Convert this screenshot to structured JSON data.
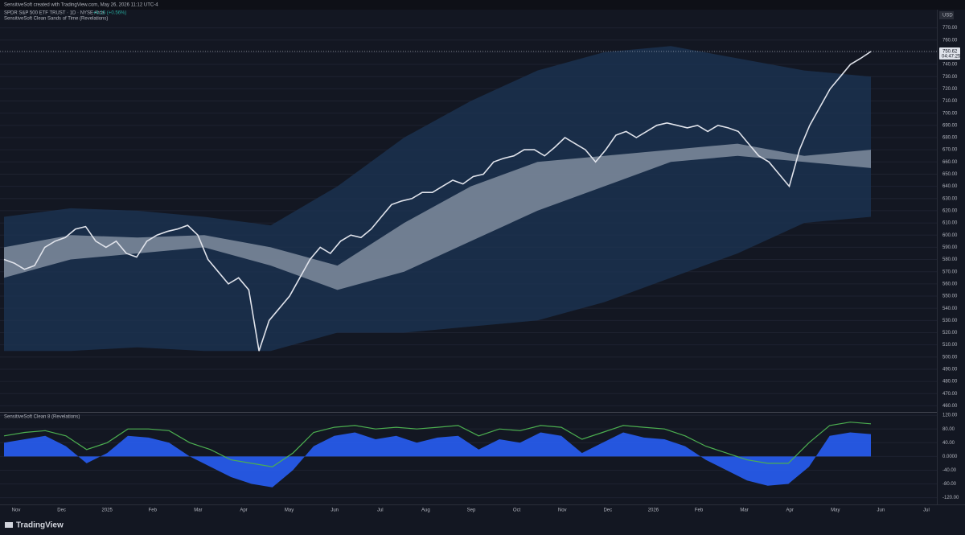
{
  "header": {
    "credit": "SensitiveSoft created with TradingView.com, May 26, 2026 11:12 UTC-4"
  },
  "chart_data": [
    {
      "type": "line",
      "title": "SPDR S&P 500 ETF TRUST · 1D · NYSE Arca",
      "change": "+4.15 (+0.56%)",
      "indicator": "SensitiveSoft Clean Sands of Time (Revelations)",
      "currency": "USD",
      "countdown": "04:47:25",
      "ylim": [
        455,
        775
      ],
      "yticks": [
        {
          "value": 460,
          "label": "460.00"
        },
        {
          "value": 470,
          "label": "470.00"
        },
        {
          "value": 480,
          "label": "480.00"
        },
        {
          "value": 490,
          "label": "490.00"
        },
        {
          "value": 500,
          "label": "500.00"
        },
        {
          "value": 510,
          "label": "510.00"
        },
        {
          "value": 520,
          "label": "520.00"
        },
        {
          "value": 530,
          "label": "530.00"
        },
        {
          "value": 540,
          "label": "540.00"
        },
        {
          "value": 550,
          "label": "550.00"
        },
        {
          "value": 560,
          "label": "560.00"
        },
        {
          "value": 570,
          "label": "570.00"
        },
        {
          "value": 580,
          "label": "580.00"
        },
        {
          "value": 590,
          "label": "590.00"
        },
        {
          "value": 600,
          "label": "600.00"
        },
        {
          "value": 610,
          "label": "610.00"
        },
        {
          "value": 620,
          "label": "620.00"
        },
        {
          "value": 630,
          "label": "630.00"
        },
        {
          "value": 640,
          "label": "640.00"
        },
        {
          "value": 650,
          "label": "650.00"
        },
        {
          "value": 660,
          "label": "660.00"
        },
        {
          "value": 670,
          "label": "670.00"
        },
        {
          "value": 680,
          "label": "680.00"
        },
        {
          "value": 690,
          "label": "690.00"
        },
        {
          "value": 700,
          "label": "700.00"
        },
        {
          "value": 710,
          "label": "710.00"
        },
        {
          "value": 720,
          "label": "720.00"
        },
        {
          "value": 730,
          "label": "730.00"
        },
        {
          "value": 740,
          "label": "740.00"
        },
        {
          "value": 750,
          "label": "750.00"
        },
        {
          "value": 760,
          "label": "760.00"
        },
        {
          "value": 770,
          "label": "770.00"
        }
      ],
      "bands": [
        {
          "color": "#1c3353",
          "upper": [
            615,
            622,
            620,
            615,
            608,
            640,
            680,
            710,
            735,
            750,
            755,
            745,
            735,
            730
          ],
          "lower": [
            505,
            505,
            508,
            505,
            505,
            520,
            520,
            525,
            530,
            545,
            565,
            585,
            610,
            615
          ]
        },
        {
          "color": "#8d99aa",
          "upper": [
            590,
            600,
            598,
            600,
            590,
            575,
            610,
            640,
            660,
            665,
            670,
            675,
            665,
            670
          ],
          "lower": [
            565,
            580,
            585,
            590,
            575,
            555,
            570,
            595,
            620,
            640,
            660,
            665,
            660,
            655
          ]
        }
      ],
      "series": [
        {
          "color": "#e0e3eb",
          "values": [
            580,
            577,
            572,
            575,
            590,
            595,
            598,
            605,
            607,
            595,
            590,
            595,
            585,
            582,
            595,
            600,
            603,
            605,
            608,
            600,
            580,
            570,
            560,
            565,
            555,
            505,
            530,
            540,
            550,
            565,
            580,
            590,
            585,
            595,
            600,
            598,
            605,
            615,
            625,
            628,
            630,
            635,
            635,
            640,
            645,
            642,
            648,
            650,
            660,
            663,
            665,
            670,
            670,
            665,
            672,
            680,
            675,
            670,
            660,
            670,
            682,
            685,
            680,
            685,
            690,
            692,
            690,
            688,
            690,
            685,
            690,
            688,
            685,
            675,
            665,
            660,
            650,
            640,
            670,
            690,
            705,
            720,
            730,
            740,
            745,
            750.62
          ]
        }
      ]
    },
    {
      "type": "area",
      "title": "SensitiveSoft Clean 8 (Revelations)",
      "ylim": [
        -135,
        125
      ],
      "yticks": [
        {
          "value": 120,
          "label": "120.00"
        },
        {
          "value": 80,
          "label": "80.00"
        },
        {
          "value": 40,
          "label": "40.00"
        },
        {
          "value": 0,
          "label": "0.0000"
        },
        {
          "value": -40,
          "label": "-40.00"
        },
        {
          "value": -80,
          "label": "-80.00"
        },
        {
          "value": -120,
          "label": "-120.00"
        }
      ],
      "series": [
        {
          "color": "#2962ff",
          "values": [
            40,
            50,
            60,
            30,
            -20,
            10,
            60,
            55,
            40,
            0,
            -30,
            -60,
            -80,
            -90,
            -40,
            30,
            60,
            70,
            50,
            60,
            40,
            55,
            60,
            20,
            50,
            40,
            70,
            60,
            10,
            40,
            70,
            55,
            50,
            30,
            -10,
            -40,
            -70,
            -85,
            -80,
            -30,
            60,
            70,
            65
          ]
        },
        {
          "color": "#4caf50",
          "values": [
            60,
            70,
            75,
            60,
            20,
            40,
            80,
            80,
            75,
            40,
            20,
            -10,
            -20,
            -30,
            10,
            70,
            85,
            90,
            80,
            85,
            80,
            85,
            90,
            60,
            80,
            75,
            90,
            85,
            50,
            70,
            90,
            85,
            80,
            60,
            30,
            10,
            -10,
            -20,
            -20,
            40,
            90,
            100,
            95
          ]
        }
      ]
    }
  ],
  "time_axis": [
    "Nov",
    "Dec",
    "2025",
    "Feb",
    "Mar",
    "Apr",
    "May",
    "Jun",
    "Jul",
    "Aug",
    "Sep",
    "Oct",
    "Nov",
    "Dec",
    "2026",
    "Feb",
    "Mar",
    "Apr",
    "May",
    "Jun",
    "Jul"
  ],
  "footer": {
    "logo": "TradingView"
  }
}
